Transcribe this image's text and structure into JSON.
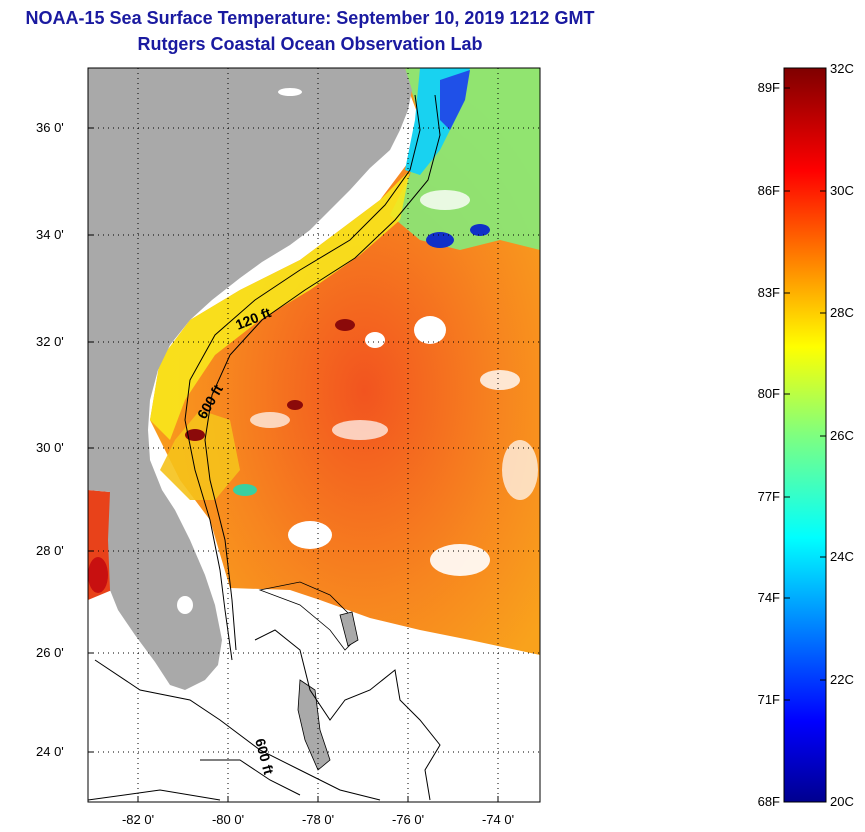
{
  "title": {
    "line1": "NOAA-15 Sea Surface Temperature:  September 10, 2019 1212 GMT",
    "line2": "Rutgers Coastal Ocean Observation Lab"
  },
  "map": {
    "lat_labels": [
      "36 0'",
      "34 0'",
      "32 0'",
      "30 0'",
      "28 0'",
      "26 0'",
      "24 0'"
    ],
    "lon_labels": [
      "-82 0'",
      "-80 0'",
      "-78 0'",
      "-76 0'",
      "-74 0'"
    ],
    "contours": [
      "120 ft",
      "600 ft",
      "600 ft"
    ],
    "colors": {
      "land": "#a9a9a9",
      "frame": "#000000",
      "no_data": "#ffffff"
    }
  },
  "colorbar": {
    "fahrenheit": [
      "89F",
      "86F",
      "83F",
      "80F",
      "77F",
      "74F",
      "71F",
      "68F"
    ],
    "celsius": [
      "32C",
      "30C",
      "28C",
      "26C",
      "24C",
      "22C",
      "20C"
    ],
    "range_c": [
      20,
      32
    ]
  }
}
